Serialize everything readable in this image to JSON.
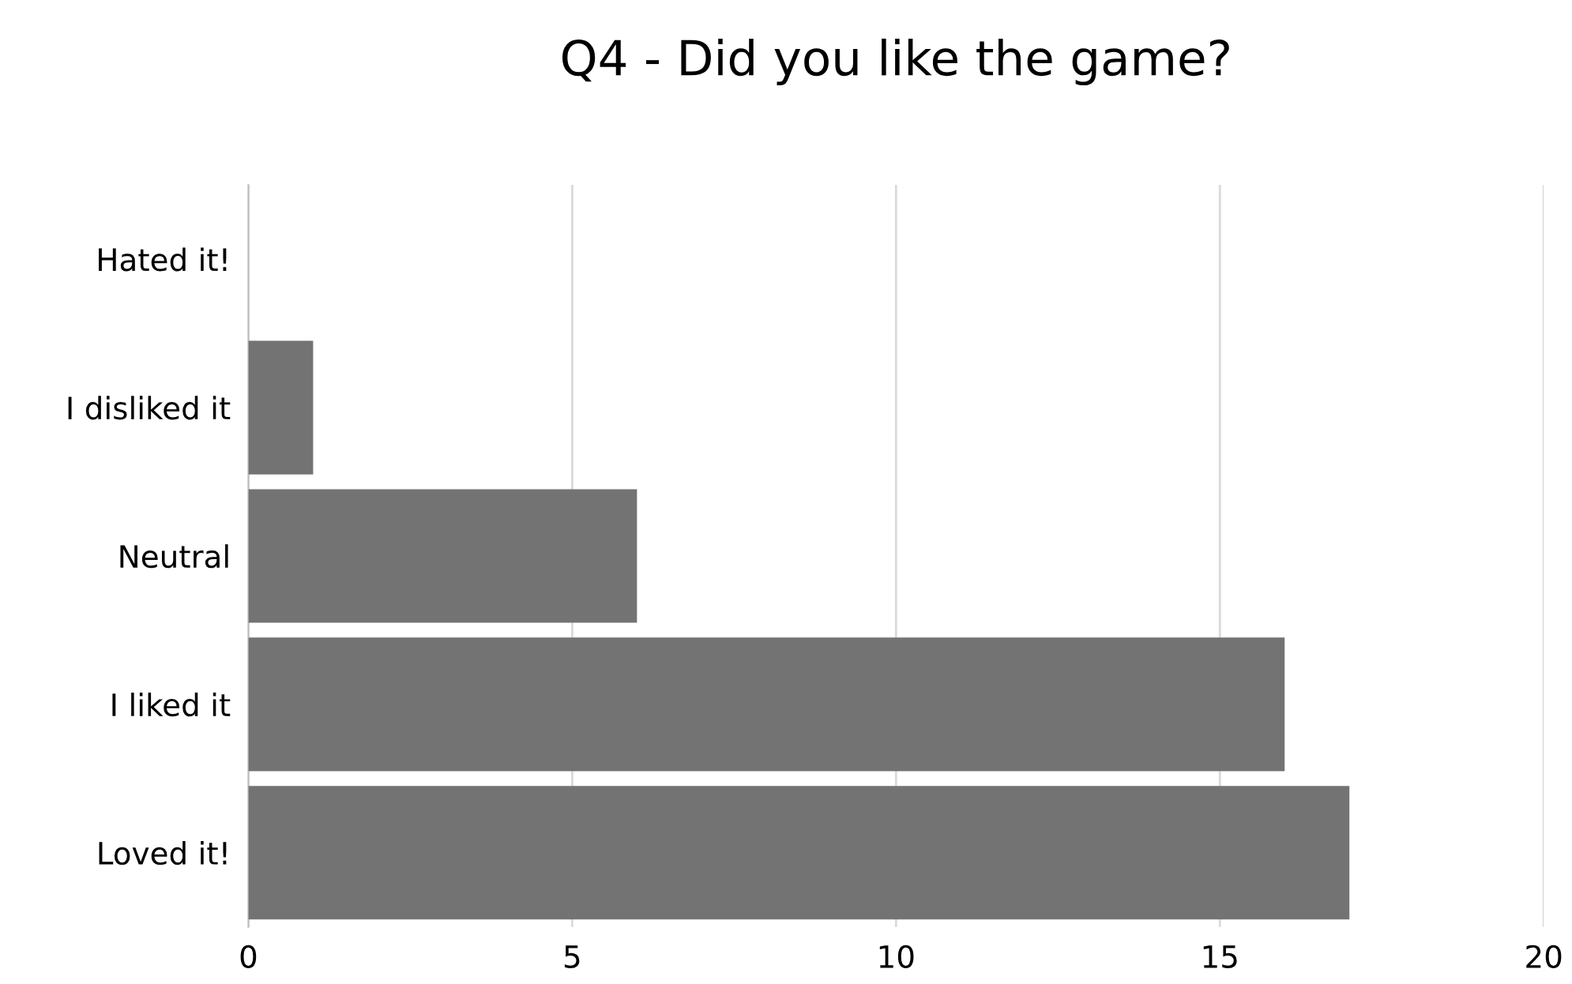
{
  "chart_data": {
    "type": "bar",
    "orientation": "horizontal",
    "title": "Q4 - Did you like the game?",
    "categories": [
      "Hated it!",
      "I disliked it",
      "Neutral",
      "I liked it",
      "Loved it!"
    ],
    "values": [
      0,
      1,
      6,
      16,
      17
    ],
    "color": "#737373",
    "xlim": [
      0,
      20
    ],
    "xticks": [
      0,
      5,
      10,
      15,
      20
    ],
    "grid": "x"
  }
}
